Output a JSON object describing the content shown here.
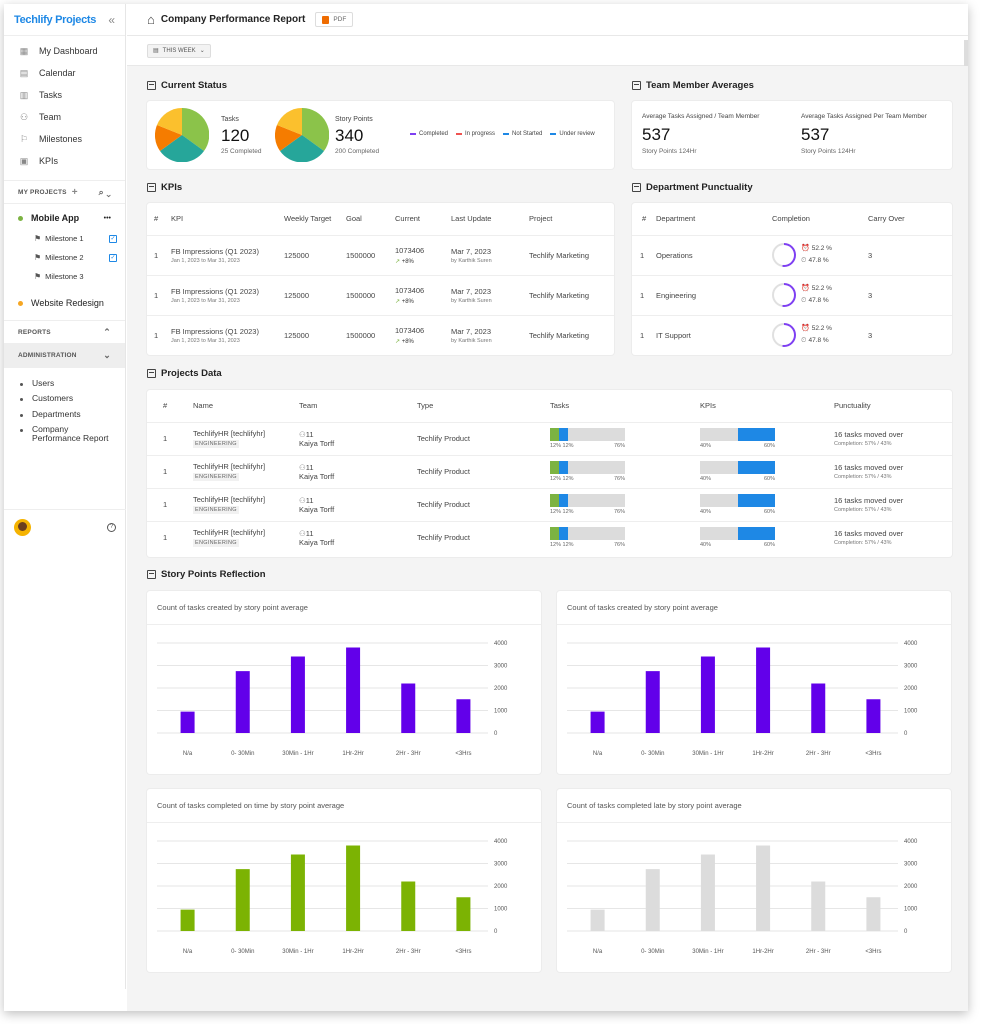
{
  "sidebar": {
    "brand": "Techlify Projects",
    "nav": [
      {
        "label": "My Dashboard",
        "icon": "dashboard-icon"
      },
      {
        "label": "Calendar",
        "icon": "calendar-icon"
      },
      {
        "label": "Tasks",
        "icon": "tasks-icon"
      },
      {
        "label": "Team",
        "icon": "team-icon"
      },
      {
        "label": "Milestones",
        "icon": "flag-icon"
      },
      {
        "label": "KPIs",
        "icon": "kpi-icon"
      }
    ],
    "my_projects_label": "MY PROJECTS",
    "projects": [
      {
        "name": "Mobile App",
        "color": "#7cb342",
        "more": "•••",
        "milestones": [
          "Milestone 1",
          "Milestone 2",
          "Milestone 3"
        ]
      },
      {
        "name": "Website Redesign",
        "color": "#f5a623"
      }
    ],
    "reports_label": "REPORTS",
    "administration_label": "ADMINISTRATION",
    "admin_items": [
      "Users",
      "Customers",
      "Departments",
      "Company Performance Report"
    ]
  },
  "header": {
    "title": "Company Performance Report",
    "pdf_label": "PDF",
    "filter_label": "THIS WEEK"
  },
  "current_status": {
    "title": "Current Status",
    "tasks": {
      "label": "Tasks",
      "value": "120",
      "sub": "25 Completed"
    },
    "story_points": {
      "label": "Story Points",
      "value": "340",
      "sub": "200 Completed"
    },
    "legend": [
      {
        "label": "Completed",
        "color": "#7e3ff2"
      },
      {
        "label": "In progress",
        "color": "#ef5350"
      },
      {
        "label": "Not Started",
        "color": "#1e88e5"
      },
      {
        "label": "Under review",
        "color": "#1e88e5"
      }
    ],
    "pie_colors": [
      "#8bc34a",
      "#26a69a",
      "#f57c00",
      "#fbc02d"
    ]
  },
  "team_averages": {
    "title": "Team Member Averages",
    "items": [
      {
        "label": "Average Tasks Assigned / Team Member",
        "value": "537",
        "sub": "Story Points 124Hr"
      },
      {
        "label": "Average Tasks Assigned Per Team Member",
        "value": "537",
        "sub": "Story Points 124Hr"
      }
    ]
  },
  "kpis": {
    "title": "KPIs",
    "headers": [
      "#",
      "KPI",
      "Weekly Target",
      "Goal",
      "Current",
      "Last Update",
      "Project"
    ],
    "rows": [
      {
        "num": "1",
        "name": "FB Impressions (Q1 2023)",
        "dates": "Jan 1, 2023 to Mar 31, 2023",
        "target": "125000",
        "goal": "1500000",
        "current": "1073406",
        "change": "+8%",
        "update": "Mar 7, 2023",
        "by": "by Karthik Suren",
        "project": "Techlify Marketing"
      },
      {
        "num": "1",
        "name": "FB Impressions (Q1 2023)",
        "dates": "Jan 1, 2023 to Mar 31, 2023",
        "target": "125000",
        "goal": "1500000",
        "current": "1073406",
        "change": "+8%",
        "update": "Mar 7, 2023",
        "by": "by Karthik Suren",
        "project": "Techlify Marketing"
      },
      {
        "num": "1",
        "name": "FB Impressions (Q1 2023)",
        "dates": "Jan 1, 2023 to Mar 31, 2023",
        "target": "125000",
        "goal": "1500000",
        "current": "1073406",
        "change": "+8%",
        "update": "Mar 7, 2023",
        "by": "by Karthik Suren",
        "project": "Techlify Marketing"
      }
    ]
  },
  "punctuality": {
    "title": "Department Punctuality",
    "headers": [
      "#",
      "Department",
      "Completion",
      "Carry Over"
    ],
    "rows": [
      {
        "num": "1",
        "dept": "Operations",
        "p1": "52.2 %",
        "p2": "47.8 %",
        "carry": "3",
        "fill": 0.52
      },
      {
        "num": "1",
        "dept": "Engineering",
        "p1": "52.2 %",
        "p2": "47.8 %",
        "carry": "3",
        "fill": 0.52
      },
      {
        "num": "1",
        "dept": "IT Support",
        "p1": "52.2 %",
        "p2": "47.8 %",
        "carry": "3",
        "fill": 0.52
      }
    ]
  },
  "projects": {
    "title": "Projects Data",
    "headers": [
      "#",
      "Name",
      "Team",
      "Type",
      "Tasks",
      "KPIs",
      "Punctuality"
    ],
    "rows": [
      {
        "num": "1",
        "name": "TechlifyHR [techlifyhr]",
        "tag": "ENGINEERING",
        "team_count": "11",
        "lead": "Kaiya Torff",
        "type": "Techlify Product",
        "tasks": {
          "a": "12%",
          "b": "12%",
          "c": "76%"
        },
        "kpis": {
          "a": "40%",
          "b": "60%"
        },
        "punct": "16 tasks moved over",
        "punct_sub": "Completion: 57% / 43%"
      },
      {
        "num": "1",
        "name": "TechlifyHR [techlifyhr]",
        "tag": "ENGINEERING",
        "team_count": "11",
        "lead": "Kaiya Torff",
        "type": "Techlify Product",
        "tasks": {
          "a": "12%",
          "b": "12%",
          "c": "76%"
        },
        "kpis": {
          "a": "40%",
          "b": "60%"
        },
        "punct": "16 tasks moved over",
        "punct_sub": "Completion: 57% / 43%"
      },
      {
        "num": "1",
        "name": "TechlifyHR [techlifyhr]",
        "tag": "ENGINEERING",
        "team_count": "11",
        "lead": "Kaiya Torff",
        "type": "Techlify Product",
        "tasks": {
          "a": "12%",
          "b": "12%",
          "c": "76%"
        },
        "kpis": {
          "a": "40%",
          "b": "60%"
        },
        "punct": "16 tasks moved over",
        "punct_sub": "Completion: 57% / 43%"
      },
      {
        "num": "1",
        "name": "TechlifyHR [techlifyhr]",
        "tag": "ENGINEERING",
        "team_count": "11",
        "lead": "Kaiya Torff",
        "type": "Techlify Product",
        "tasks": {
          "a": "12%",
          "b": "12%",
          "c": "76%"
        },
        "kpis": {
          "a": "40%",
          "b": "60%"
        },
        "punct": "16 tasks moved over",
        "punct_sub": "Completion: 57% / 43%"
      }
    ]
  },
  "story_points": {
    "title": "Story Points Reflection"
  },
  "chart_data": [
    {
      "type": "bar",
      "title": "Count of tasks created by story point average",
      "categories": [
        "N/a",
        "0- 30Min",
        "30Min - 1Hr",
        "1Hr-2Hr",
        "2Hr - 3Hr",
        "<3Hrs"
      ],
      "values": [
        950,
        2750,
        3400,
        3800,
        2200,
        1500
      ],
      "ylim": [
        0,
        4000
      ],
      "yticks": [
        "4000",
        "3000",
        "2000",
        "1000",
        "0"
      ],
      "color": "#6200ea"
    },
    {
      "type": "bar",
      "title": "Count of tasks created by story point average",
      "categories": [
        "N/a",
        "0- 30Min",
        "30Min - 1Hr",
        "1Hr-2Hr",
        "2Hr - 3Hr",
        "<3Hrs"
      ],
      "values": [
        950,
        2750,
        3400,
        3800,
        2200,
        1500
      ],
      "ylim": [
        0,
        4000
      ],
      "yticks": [
        "4000",
        "3000",
        "2000",
        "1000",
        "0"
      ],
      "color": "#6200ea"
    },
    {
      "type": "bar",
      "title": "Count of tasks completed on time by story point average",
      "categories": [
        "N/a",
        "0- 30Min",
        "30Min - 1Hr",
        "1Hr-2Hr",
        "2Hr - 3Hr",
        "<3Hrs"
      ],
      "values": [
        950,
        2750,
        3400,
        3800,
        2200,
        1500
      ],
      "ylim": [
        0,
        4000
      ],
      "yticks": [
        "4000",
        "3000",
        "2000",
        "1000",
        "0"
      ],
      "color": "#7cb303"
    },
    {
      "type": "bar",
      "title": "Count of tasks completed late by story point average",
      "categories": [
        "N/a",
        "0- 30Min",
        "30Min - 1Hr",
        "1Hr-2Hr",
        "2Hr - 3Hr",
        "<3Hrs"
      ],
      "values": [
        950,
        2750,
        3400,
        3800,
        2200,
        1500
      ],
      "ylim": [
        0,
        4000
      ],
      "yticks": [
        "4000",
        "3000",
        "2000",
        "1000",
        "0"
      ],
      "color": "#dcdcdc"
    }
  ]
}
